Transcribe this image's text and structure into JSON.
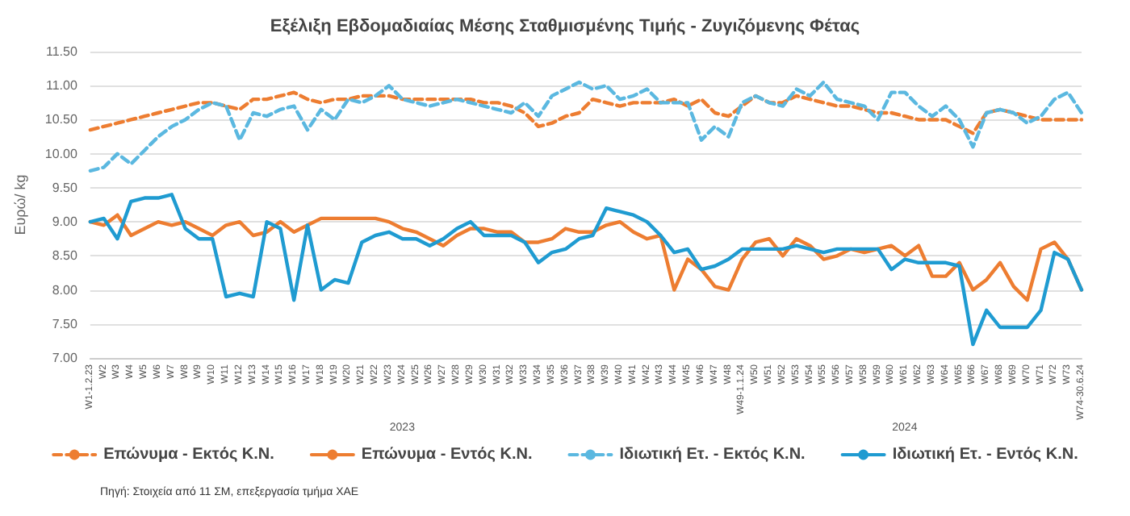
{
  "chart_data": {
    "type": "line",
    "title": "Εξέλιξη Εβδομαδιαίας Μέσης Σταθμισμένης Τιμής - Ζυγιζόμενης Φέτας",
    "ylabel": "Ευρώ/ kg",
    "categories": [
      "W1-1.2.23",
      "W2",
      "W3",
      "W4",
      "W5",
      "W6",
      "W7",
      "W8",
      "W9",
      "W10",
      "W11",
      "W12",
      "W13",
      "W14",
      "W15",
      "W16",
      "W17",
      "W18",
      "W19",
      "W20",
      "W21",
      "W22",
      "W23",
      "W24",
      "W25",
      "W26",
      "W27",
      "W28",
      "W29",
      "W30",
      "W31",
      "W32",
      "W33",
      "W34",
      "W35",
      "W36",
      "W37",
      "W38",
      "W39",
      "W40",
      "W41",
      "W42",
      "W43",
      "W44",
      "W45",
      "W46",
      "W47",
      "W48",
      "W49-1.1.24",
      "W50",
      "W51",
      "W52",
      "W53",
      "W54",
      "W55",
      "W56",
      "W57",
      "W58",
      "W59",
      "W60",
      "W61",
      "W62",
      "W63",
      "W64",
      "W65",
      "W66",
      "W67",
      "W68",
      "W69",
      "W70",
      "W71",
      "W72",
      "W73",
      "W74-30.6.24"
    ],
    "series": [
      {
        "name": "Επώνυμα - Εκτός Κ.Ν.",
        "color": "#ed7d31",
        "line_style": "dashed",
        "values": [
          10.35,
          10.4,
          10.45,
          10.5,
          10.55,
          10.6,
          10.65,
          10.7,
          10.75,
          10.75,
          10.7,
          10.65,
          10.8,
          10.8,
          10.85,
          10.9,
          10.8,
          10.75,
          10.8,
          10.8,
          10.85,
          10.85,
          10.85,
          10.8,
          10.8,
          10.8,
          10.8,
          10.8,
          10.8,
          10.75,
          10.75,
          10.7,
          10.6,
          10.4,
          10.45,
          10.55,
          10.6,
          10.8,
          10.75,
          10.7,
          10.75,
          10.75,
          10.75,
          10.8,
          10.7,
          10.8,
          10.6,
          10.55,
          10.7,
          10.85,
          10.75,
          10.75,
          10.85,
          10.8,
          10.75,
          10.7,
          10.7,
          10.65,
          10.6,
          10.6,
          10.55,
          10.5,
          10.5,
          10.5,
          10.4,
          10.3,
          10.6,
          10.65,
          10.6,
          10.55,
          10.5,
          10.5,
          10.5,
          10.5
        ]
      },
      {
        "name": "Επώνυμα - Εντός Κ.Ν.",
        "color": "#ed7d31",
        "line_style": "solid",
        "values": [
          9.0,
          8.95,
          9.1,
          8.8,
          8.9,
          9.0,
          8.95,
          9.0,
          8.9,
          8.8,
          8.95,
          9.0,
          8.8,
          8.85,
          9.0,
          8.85,
          8.95,
          9.05,
          9.05,
          9.05,
          9.05,
          9.05,
          9.0,
          8.9,
          8.85,
          8.75,
          8.65,
          8.8,
          8.9,
          8.9,
          8.85,
          8.85,
          8.7,
          8.7,
          8.75,
          8.9,
          8.85,
          8.85,
          8.95,
          9.0,
          8.85,
          8.75,
          8.8,
          8.0,
          8.45,
          8.3,
          8.05,
          8.0,
          8.45,
          8.7,
          8.75,
          8.5,
          8.75,
          8.65,
          8.45,
          8.5,
          8.6,
          8.55,
          8.6,
          8.65,
          8.5,
          8.65,
          8.2,
          8.2,
          8.4,
          8.0,
          8.15,
          8.4,
          8.05,
          7.85,
          8.6,
          8.7,
          8.45,
          8.0
        ]
      },
      {
        "name": "Ιδιωτική Ετ. - Εκτός Κ.Ν.",
        "color": "#5bb8e0",
        "line_style": "dashed",
        "values": [
          9.75,
          9.8,
          10.0,
          9.85,
          10.05,
          10.25,
          10.4,
          10.5,
          10.65,
          10.75,
          10.7,
          10.2,
          10.6,
          10.55,
          10.65,
          10.7,
          10.35,
          10.65,
          10.5,
          10.8,
          10.75,
          10.85,
          11.0,
          10.8,
          10.75,
          10.7,
          10.75,
          10.8,
          10.75,
          10.7,
          10.65,
          10.6,
          10.75,
          10.55,
          10.85,
          10.95,
          11.05,
          10.95,
          11.0,
          10.8,
          10.85,
          10.95,
          10.75,
          10.75,
          10.75,
          10.2,
          10.4,
          10.25,
          10.75,
          10.85,
          10.75,
          10.7,
          10.95,
          10.85,
          11.05,
          10.8,
          10.75,
          10.7,
          10.5,
          10.9,
          10.9,
          10.7,
          10.55,
          10.7,
          10.5,
          10.1,
          10.6,
          10.65,
          10.6,
          10.45,
          10.55,
          10.8,
          10.9,
          10.6
        ]
      },
      {
        "name": "Ιδιωτική Ετ. - Εντός Κ.Ν.",
        "color": "#1f9bd1",
        "line_style": "solid",
        "values": [
          9.0,
          9.05,
          8.75,
          9.3,
          9.35,
          9.35,
          9.4,
          8.9,
          8.75,
          8.75,
          7.9,
          7.95,
          7.9,
          9.0,
          8.9,
          7.85,
          8.95,
          8.0,
          8.15,
          8.1,
          8.7,
          8.8,
          8.85,
          8.75,
          8.75,
          8.65,
          8.75,
          8.9,
          9.0,
          8.8,
          8.8,
          8.8,
          8.7,
          8.4,
          8.55,
          8.6,
          8.75,
          8.8,
          9.2,
          9.15,
          9.1,
          9.0,
          8.8,
          8.55,
          8.6,
          8.3,
          8.35,
          8.45,
          8.6,
          8.6,
          8.6,
          8.6,
          8.65,
          8.6,
          8.55,
          8.6,
          8.6,
          8.6,
          8.6,
          8.3,
          8.45,
          8.4,
          8.4,
          8.4,
          8.35,
          7.2,
          7.7,
          7.45,
          7.45,
          7.45,
          7.7,
          8.55,
          8.45,
          8.0
        ]
      }
    ],
    "ylim": [
      7,
      11.5
    ],
    "yticks": [
      {
        "value": 7,
        "label": "7.00"
      },
      {
        "value": 7.5,
        "label": "7.50"
      },
      {
        "value": 8,
        "label": "8.00"
      },
      {
        "value": 8.5,
        "label": "8.50"
      },
      {
        "value": 9,
        "label": "9.00"
      },
      {
        "value": 9.5,
        "label": "9.50"
      },
      {
        "value": 10,
        "label": "10.00"
      },
      {
        "value": 10.5,
        "label": "10.50"
      },
      {
        "value": 11,
        "label": "11.00"
      },
      {
        "value": 11.5,
        "label": "11.50"
      }
    ],
    "grid": "y",
    "legend": "bottom",
    "marker": "none",
    "annotations": [
      "2023",
      "2024",
      "Πηγή: Στοιχεία από 11 ΣΜ, επεξεργασία τμήμα ΧΑΕ"
    ]
  }
}
